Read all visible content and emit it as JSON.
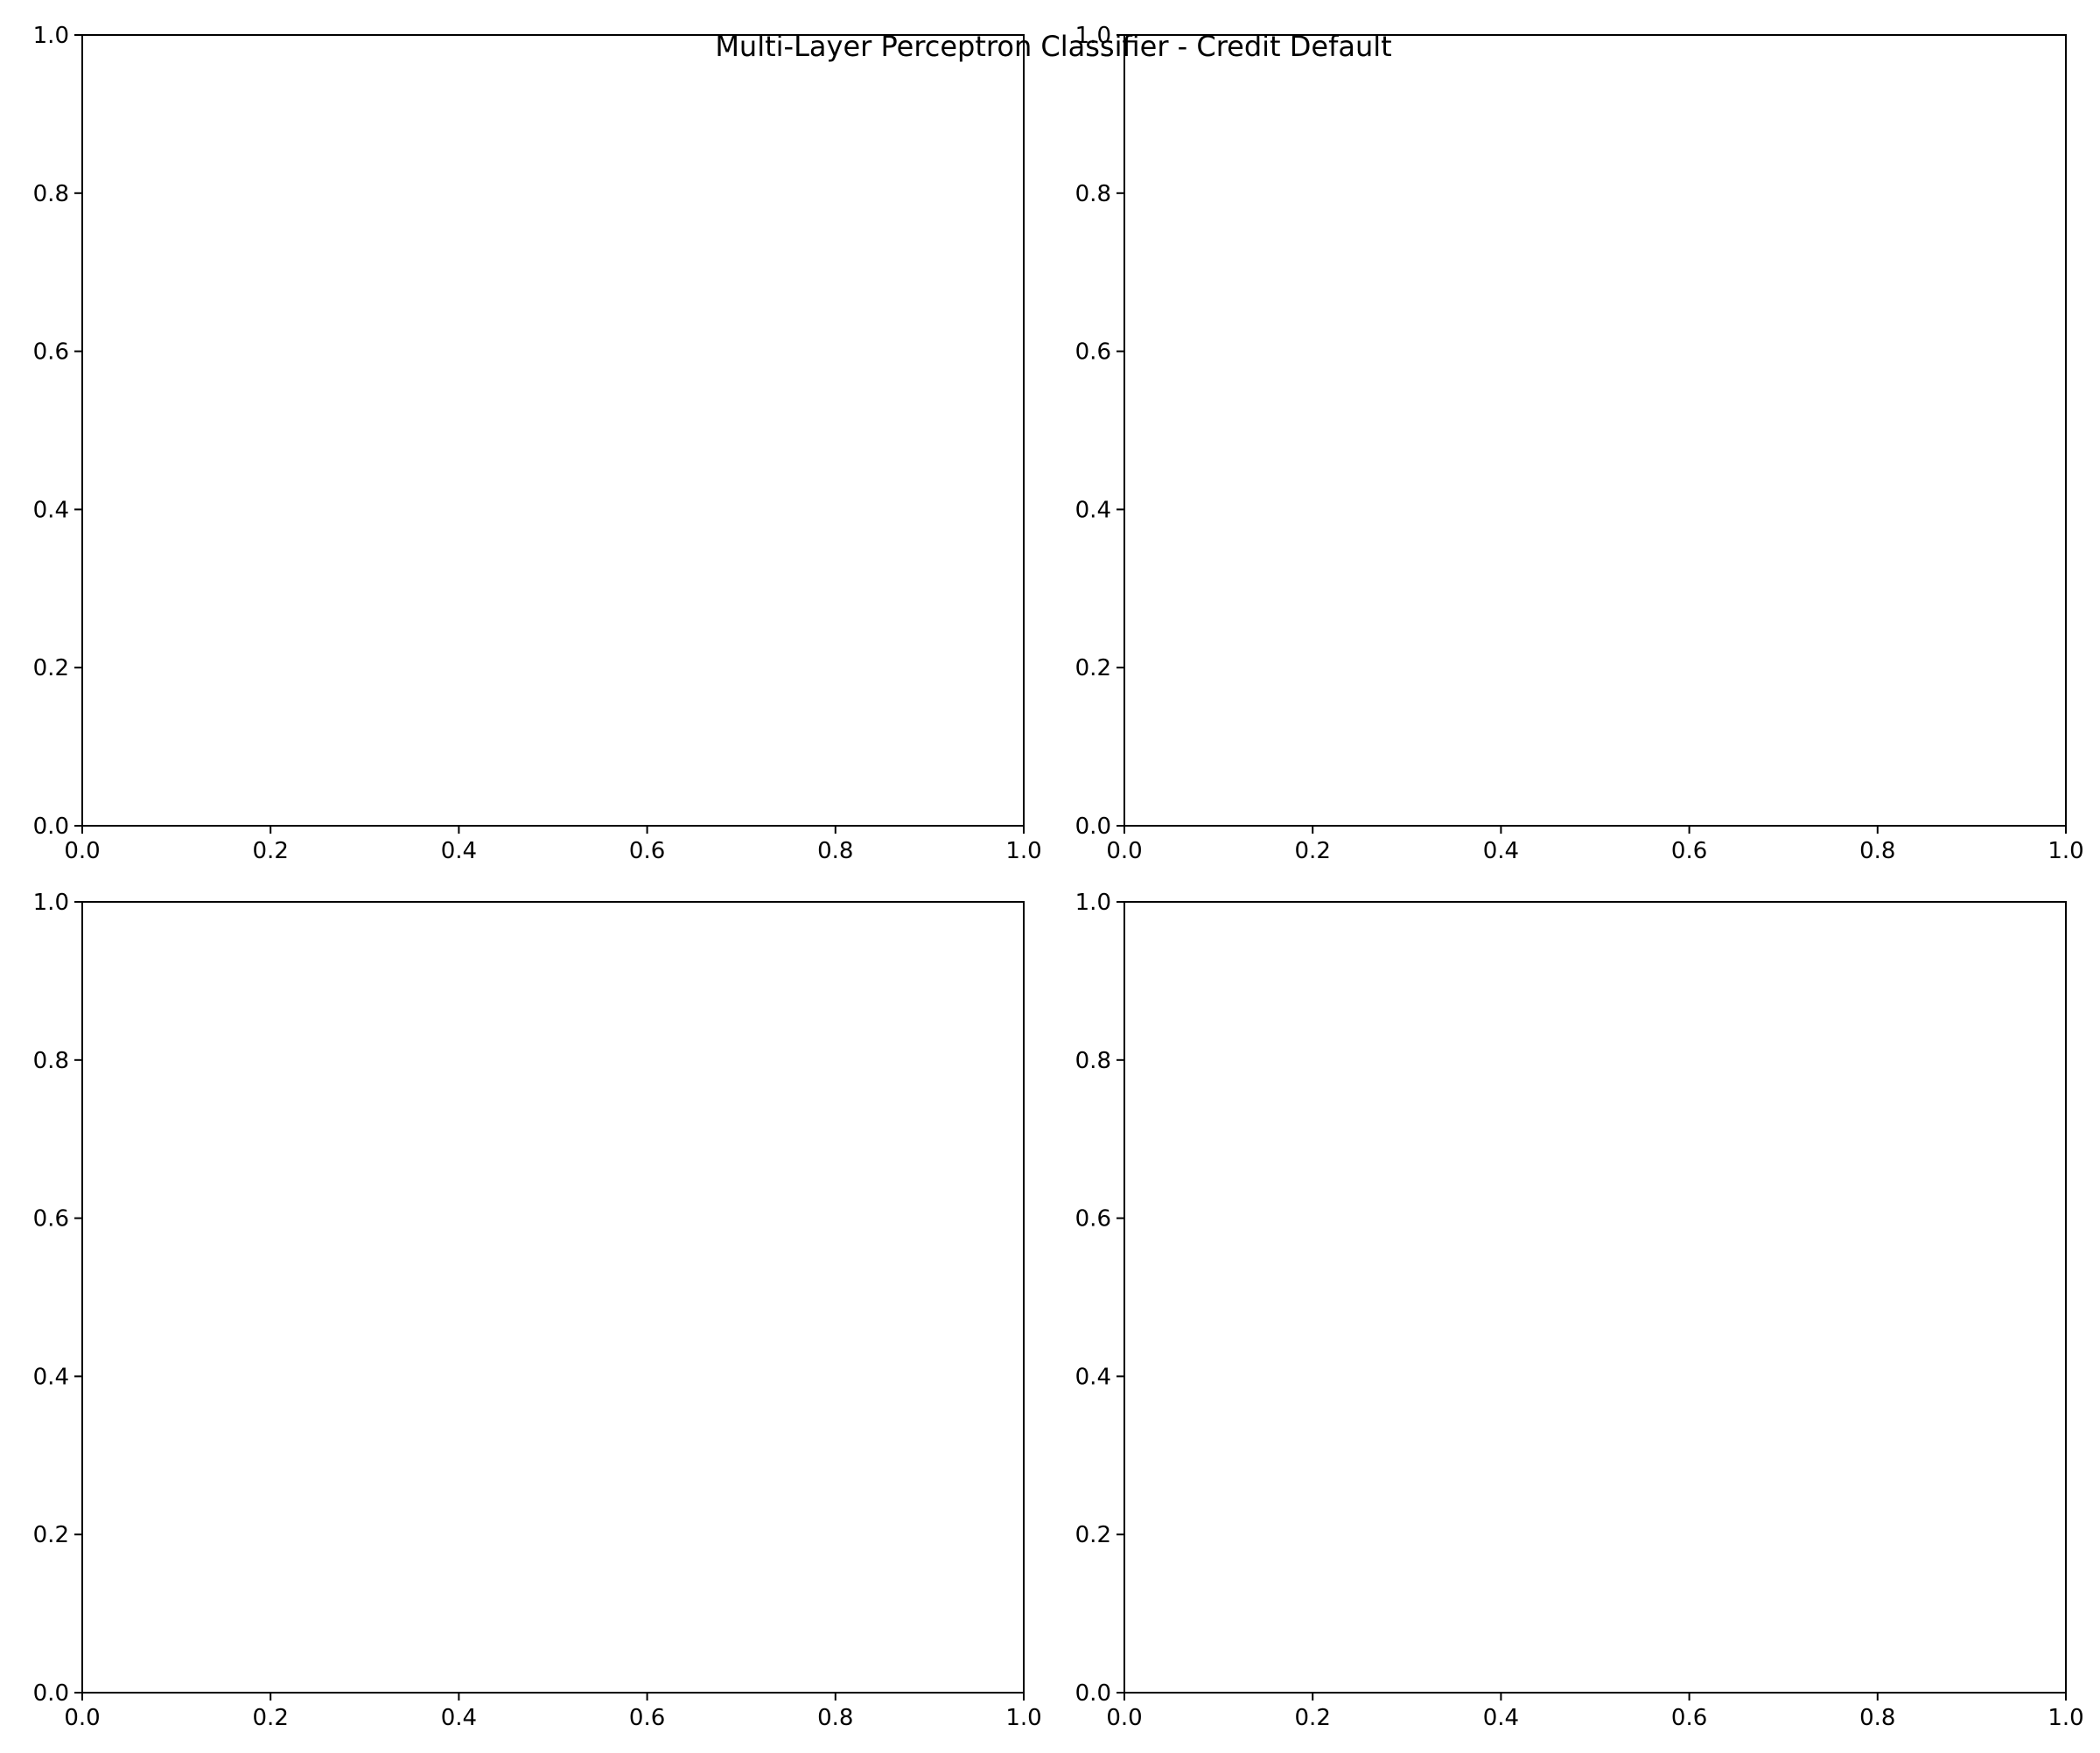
{
  "figure": {
    "title": "Multi-Layer Perceptron Classifier - Credit Default",
    "background": "#ffffff",
    "axis_color": "#000000"
  },
  "chart_data": [
    {
      "type": "scatter",
      "panel": "top-left",
      "title": "",
      "xlabel": "",
      "ylabel": "",
      "xlim": [
        0.0,
        1.0
      ],
      "ylim": [
        0.0,
        1.0
      ],
      "xticks": [
        "0.0",
        "0.2",
        "0.4",
        "0.6",
        "0.8",
        "1.0"
      ],
      "yticks": [
        "0.0",
        "0.2",
        "0.4",
        "0.6",
        "0.8",
        "1.0"
      ],
      "series": [],
      "grid": false
    },
    {
      "type": "scatter",
      "panel": "top-right",
      "title": "",
      "xlabel": "",
      "ylabel": "",
      "xlim": [
        0.0,
        1.0
      ],
      "ylim": [
        0.0,
        1.0
      ],
      "xticks": [
        "0.0",
        "0.2",
        "0.4",
        "0.6",
        "0.8",
        "1.0"
      ],
      "yticks": [
        "0.0",
        "0.2",
        "0.4",
        "0.6",
        "0.8",
        "1.0"
      ],
      "series": [],
      "grid": false
    },
    {
      "type": "scatter",
      "panel": "bottom-left",
      "title": "",
      "xlabel": "",
      "ylabel": "",
      "xlim": [
        0.0,
        1.0
      ],
      "ylim": [
        0.0,
        1.0
      ],
      "xticks": [
        "0.0",
        "0.2",
        "0.4",
        "0.6",
        "0.8",
        "1.0"
      ],
      "yticks": [
        "0.0",
        "0.2",
        "0.4",
        "0.6",
        "0.8",
        "1.0"
      ],
      "series": [],
      "grid": false
    },
    {
      "type": "scatter",
      "panel": "bottom-right",
      "title": "",
      "xlabel": "",
      "ylabel": "",
      "xlim": [
        0.0,
        1.0
      ],
      "ylim": [
        0.0,
        1.0
      ],
      "xticks": [
        "0.0",
        "0.2",
        "0.4",
        "0.6",
        "0.8",
        "1.0"
      ],
      "yticks": [
        "0.0",
        "0.2",
        "0.4",
        "0.6",
        "0.8",
        "1.0"
      ],
      "series": [],
      "grid": false
    }
  ]
}
